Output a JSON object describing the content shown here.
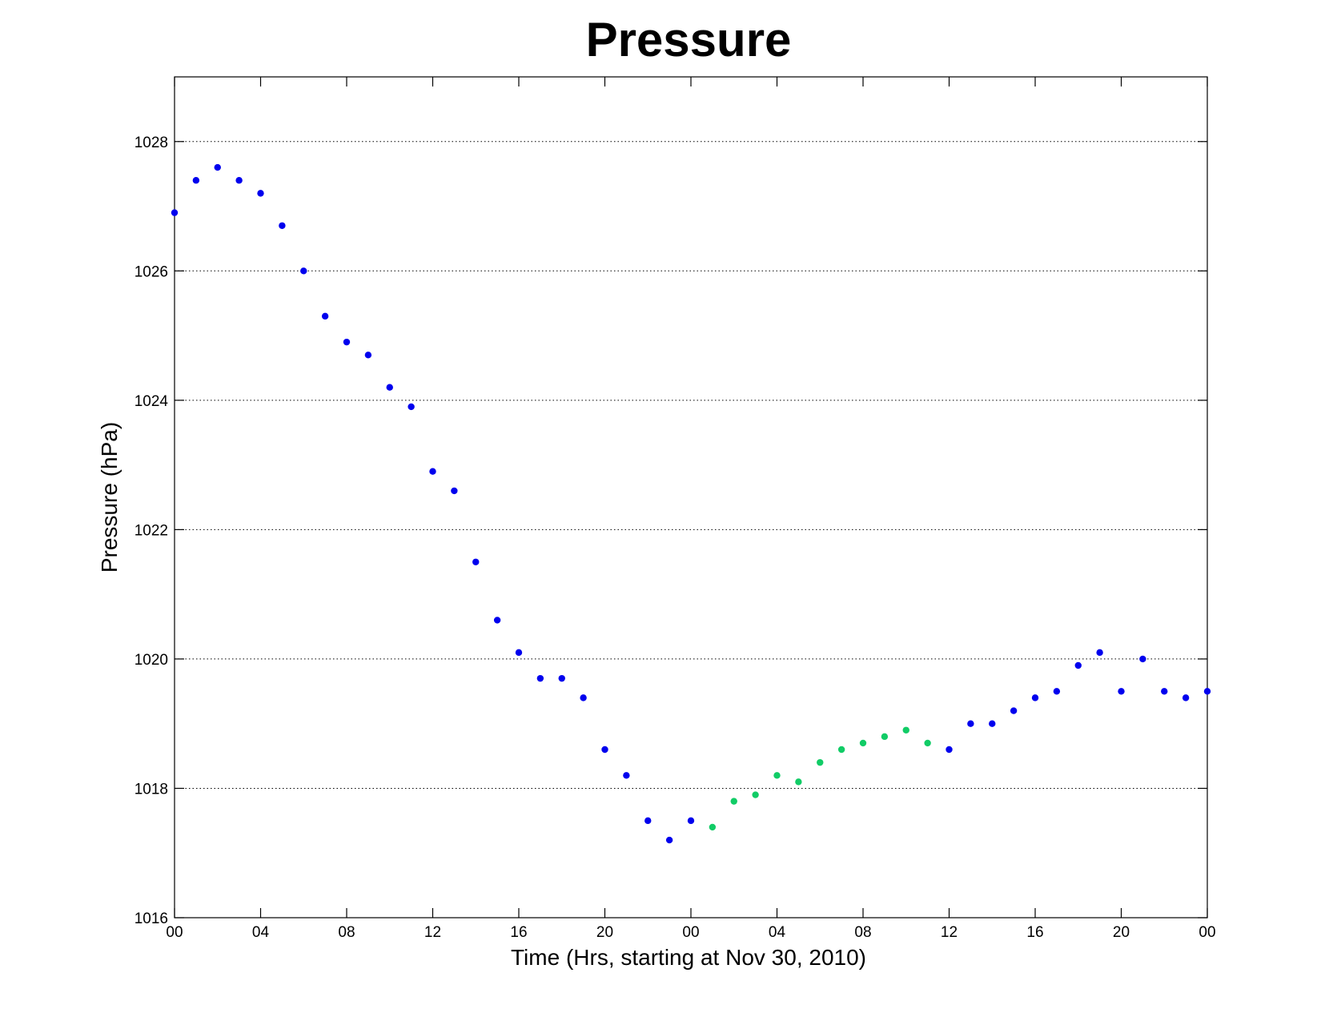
{
  "chart_data": {
    "type": "scatter",
    "title": "Pressure",
    "xlabel": "Time (Hrs, starting at Nov 30, 2010)",
    "ylabel": "Pressure (hPa)",
    "xlim": [
      0,
      48
    ],
    "ylim": [
      1016,
      1029
    ],
    "yticks": [
      1016,
      1018,
      1020,
      1022,
      1024,
      1026,
      1028
    ],
    "xticks": [
      0,
      4,
      8,
      12,
      16,
      20,
      24,
      28,
      32,
      36,
      40,
      44,
      48
    ],
    "xtick_labels": [
      "00",
      "04",
      "08",
      "12",
      "16",
      "20",
      "00",
      "04",
      "08",
      "12",
      "16",
      "20",
      "00"
    ],
    "grid": "horizontal-dotted",
    "colors": {
      "blue": "#0000ee",
      "green": "#11cc66"
    },
    "series": [
      {
        "color": "blue",
        "x": [
          0,
          1,
          2,
          3,
          4,
          5,
          6,
          7,
          8,
          9,
          10,
          11,
          12,
          13,
          14,
          15,
          16,
          17,
          18,
          19,
          20,
          21,
          22,
          23,
          24,
          36,
          37,
          38,
          39,
          40,
          41,
          42,
          43,
          44,
          45,
          46,
          47,
          48
        ],
        "y": [
          1026.9,
          1027.4,
          1027.6,
          1027.4,
          1027.2,
          1026.7,
          1026.0,
          1025.3,
          1024.9,
          1024.7,
          1024.2,
          1023.9,
          1022.9,
          1022.6,
          1021.5,
          1020.6,
          1020.1,
          1019.7,
          1019.7,
          1019.4,
          1018.6,
          1018.2,
          1017.5,
          1017.2,
          1017.5,
          1018.6,
          1019.0,
          1019.0,
          1019.2,
          1019.4,
          1019.5,
          1019.9,
          1020.1,
          1019.5,
          1020.0,
          1019.5,
          1019.4,
          1019.5
        ]
      },
      {
        "color": "green",
        "x": [
          25,
          26,
          27,
          28,
          29,
          30,
          31,
          32,
          33,
          34,
          35
        ],
        "y": [
          1017.4,
          1017.8,
          1017.9,
          1018.2,
          1018.1,
          1018.4,
          1018.6,
          1018.7,
          1018.8,
          1018.9,
          1018.7
        ]
      }
    ]
  }
}
